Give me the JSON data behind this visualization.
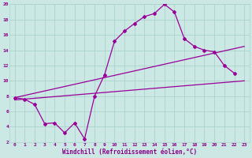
{
  "bg_color": "#cce8e4",
  "grid_color": "#aad4cc",
  "line_color": "#990099",
  "marker": "D",
  "markersize": 2.0,
  "linewidth": 0.9,
  "xlim": [
    -0.5,
    23.5
  ],
  "ylim": [
    2,
    20
  ],
  "xticks": [
    0,
    1,
    2,
    3,
    4,
    5,
    6,
    7,
    8,
    9,
    10,
    11,
    12,
    13,
    14,
    15,
    16,
    17,
    18,
    19,
    20,
    21,
    22,
    23
  ],
  "yticks": [
    2,
    4,
    6,
    8,
    10,
    12,
    14,
    16,
    18,
    20
  ],
  "xlabel": "Windchill (Refroidissement éolien,°C)",
  "font_color": "#880088",
  "tick_fontsize": 4.5,
  "label_fontsize": 5.5,
  "series1_x": [
    0,
    1,
    2,
    3,
    4,
    5,
    6,
    7,
    8,
    9,
    10,
    11,
    12,
    13,
    14,
    15,
    16,
    17,
    18,
    19,
    20,
    21,
    22
  ],
  "series1_y": [
    7.8,
    7.6,
    6.9,
    4.4,
    4.5,
    3.2,
    4.5,
    2.4,
    8.0,
    10.8,
    15.2,
    16.5,
    17.5,
    18.4,
    18.8,
    20.0,
    19.0,
    15.5,
    14.5,
    14.0,
    13.8,
    12.0,
    11.0
  ],
  "series2_x": [
    0,
    23
  ],
  "series2_y": [
    7.8,
    14.5
  ],
  "series3_x": [
    0,
    23
  ],
  "series3_y": [
    7.5,
    10.0
  ]
}
